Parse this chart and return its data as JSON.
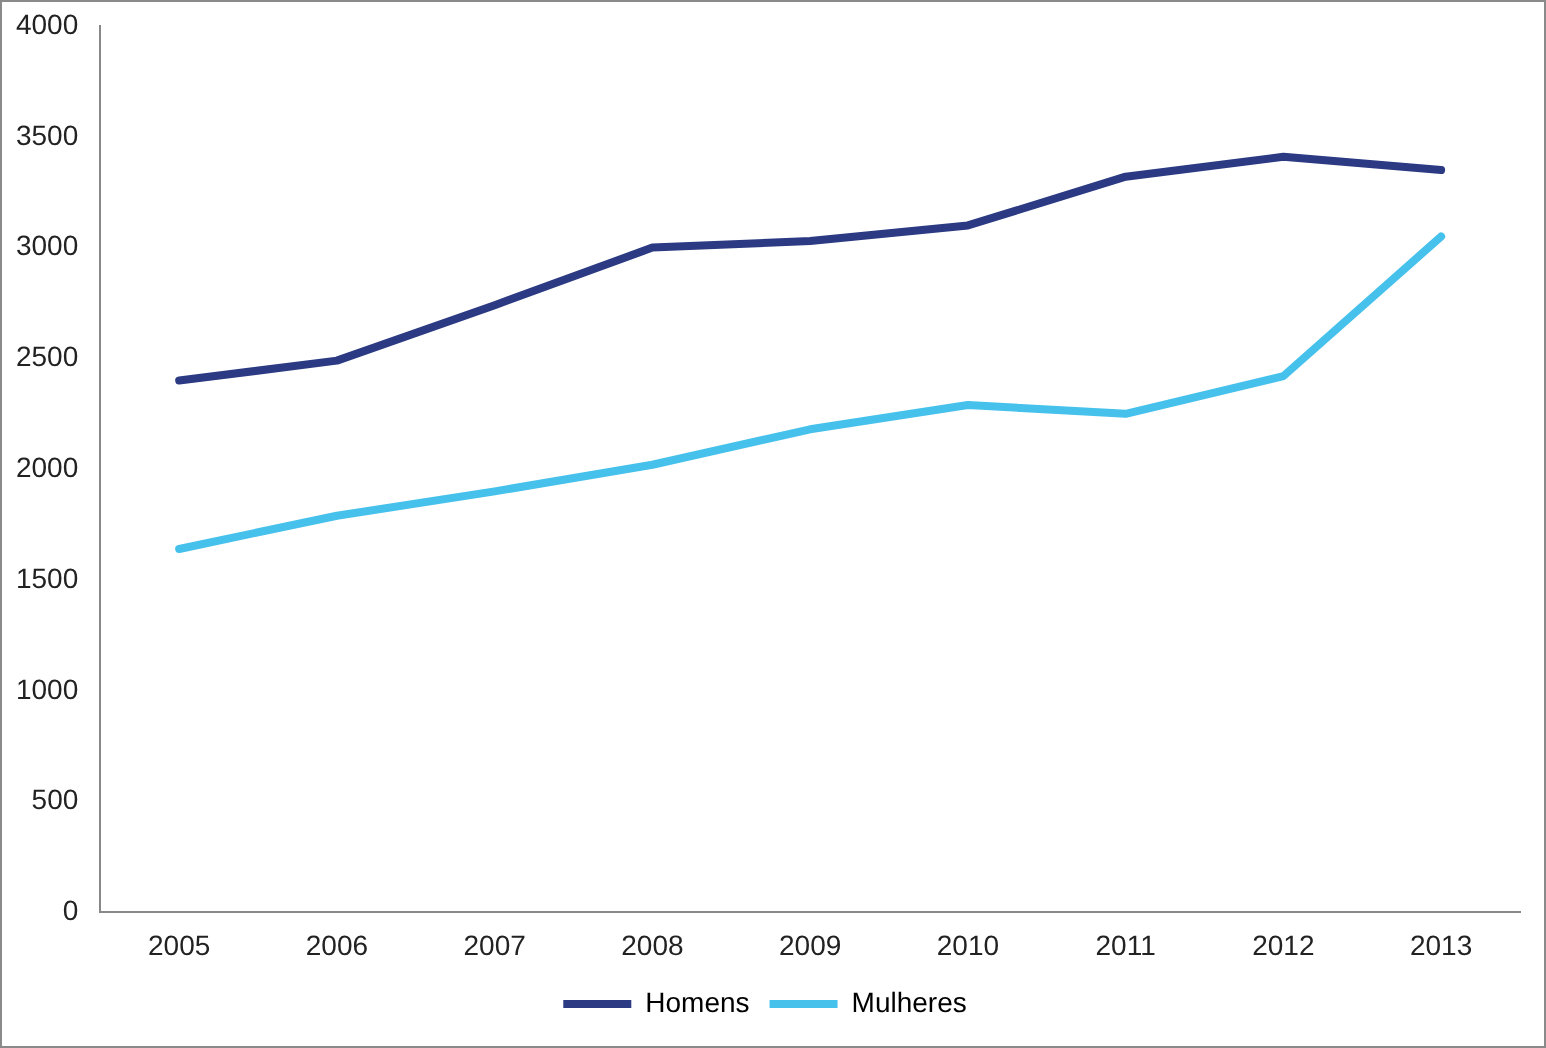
{
  "chart_data": {
    "type": "line",
    "categories": [
      "2005",
      "2006",
      "2007",
      "2008",
      "2009",
      "2010",
      "2011",
      "2012",
      "2013"
    ],
    "series": [
      {
        "name": "Homens",
        "color": "#2b3a83",
        "values": [
          2400,
          2490,
          2740,
          3000,
          3030,
          3100,
          3320,
          3410,
          3350
        ]
      },
      {
        "name": "Mulheres",
        "color": "#45c1ec",
        "values": [
          1640,
          1790,
          1900,
          2020,
          2180,
          2290,
          2250,
          2420,
          3050
        ]
      }
    ],
    "ylim": [
      0,
      4000
    ],
    "yticks": [
      0,
      500,
      1000,
      1500,
      2000,
      2500,
      3000,
      3500,
      4000
    ],
    "grid": false,
    "legend": "bottom",
    "marker": "none",
    "line_style": "solid"
  }
}
